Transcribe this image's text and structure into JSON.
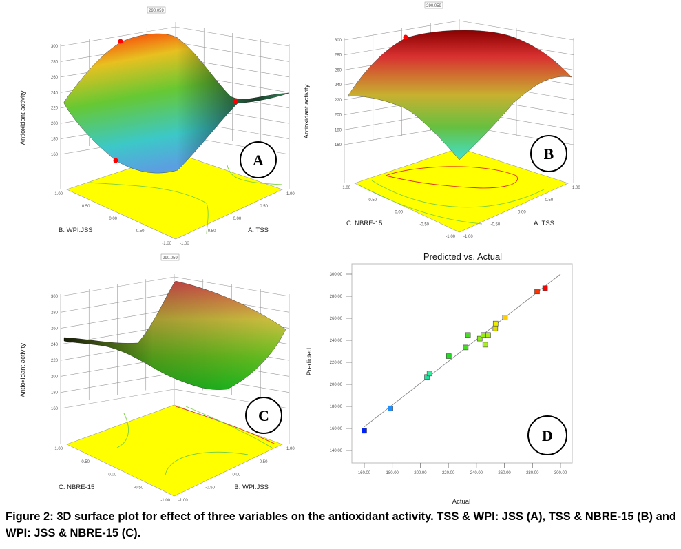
{
  "caption": "Figure 2: 3D surface plot for effect of three variables on the antioxidant activity. TSS & WPI: JSS (A), TSS & NBRE-15 (B) and WPI: JSS & NBRE-15 (C).",
  "colors": {
    "floor": "#ffff00",
    "high": "#ff0000",
    "mid": "#66cc00",
    "low": "#40e0d0",
    "design_point": "#ff0000"
  },
  "chart_data": [
    {
      "type": "surface",
      "panel_label": "A",
      "zlabel": "Antioxidant activity",
      "xlabel": "B: WPI:JSS",
      "ylabel": "A: TSS",
      "zticks": [
        "160",
        "180",
        "200",
        "220",
        "240",
        "260",
        "280",
        "300"
      ],
      "xticks": [
        "1.00",
        "0.50",
        "0.00",
        "-0.50",
        "-1.00"
      ],
      "yticks": [
        "-1.00",
        "-0.50",
        "0.00",
        "0.50",
        "1.00"
      ],
      "zlim": [
        160,
        300
      ],
      "max_annotation": "290.059"
    },
    {
      "type": "surface",
      "panel_label": "B",
      "zlabel": "Antioxidant activity",
      "xlabel": "C: NBRE-15",
      "ylabel": "A: TSS",
      "zticks": [
        "160",
        "180",
        "200",
        "220",
        "240",
        "260",
        "280",
        "300"
      ],
      "xticks": [
        "1.00",
        "0.50",
        "0.00",
        "-0.50",
        "-1.00"
      ],
      "yticks": [
        "-1.00",
        "-0.50",
        "0.00",
        "0.50",
        "1.00"
      ],
      "zlim": [
        160,
        300
      ],
      "max_annotation": "290.059"
    },
    {
      "type": "surface",
      "panel_label": "C",
      "zlabel": "Antioxidant activity",
      "xlabel": "C: NBRE-15",
      "ylabel": "B: WPI:JSS",
      "zticks": [
        "160",
        "180",
        "200",
        "220",
        "240",
        "260",
        "280",
        "300"
      ],
      "xticks": [
        "1.00",
        "0.50",
        "0.00",
        "-0.50",
        "-1.00"
      ],
      "yticks": [
        "-1.00",
        "-0.50",
        "0.00",
        "0.50",
        "1.00"
      ],
      "zlim": [
        160,
        300
      ],
      "max_annotation": "290.059"
    },
    {
      "type": "scatter",
      "panel_label": "D",
      "title": "Predicted vs. Actual",
      "xlabel": "Actual",
      "ylabel": "Predicted",
      "xlim": [
        160,
        300
      ],
      "ylim": [
        140,
        300
      ],
      "xticks": [
        "160.00",
        "180.00",
        "200.00",
        "220.00",
        "240.00",
        "260.00",
        "280.00",
        "300.00"
      ],
      "yticks": [
        "140.00",
        "160.00",
        "180.00",
        "200.00",
        "220.00",
        "240.00",
        "260.00",
        "280.00",
        "300.00"
      ],
      "reference_line": "y = x",
      "points": [
        {
          "actual": 160.0,
          "predicted": 157.9,
          "color": "#0022ff"
        },
        {
          "actual": 178.7,
          "predicted": 178.3,
          "color": "#1e90ff"
        },
        {
          "actual": 204.7,
          "predicted": 206.7,
          "color": "#20e0a0"
        },
        {
          "actual": 206.5,
          "predicted": 209.8,
          "color": "#30f0a0"
        },
        {
          "actual": 220.3,
          "predicted": 225.6,
          "color": "#22dd22"
        },
        {
          "actual": 232.4,
          "predicted": 233.5,
          "color": "#44e020"
        },
        {
          "actual": 234.0,
          "predicted": 244.8,
          "color": "#44e020"
        },
        {
          "actual": 242.4,
          "predicted": 241.5,
          "color": "#88ee11"
        },
        {
          "actual": 245.0,
          "predicted": 244.8,
          "color": "#99ee11"
        },
        {
          "actual": 248.4,
          "predicted": 244.8,
          "color": "#aaee11"
        },
        {
          "actual": 246.3,
          "predicted": 236.0,
          "color": "#aaee22"
        },
        {
          "actual": 253.5,
          "predicted": 250.8,
          "color": "#dddd00"
        },
        {
          "actual": 253.7,
          "predicted": 255.2,
          "color": "#eeee00"
        },
        {
          "actual": 260.4,
          "predicted": 260.6,
          "color": "#ffcc00"
        },
        {
          "actual": 283.3,
          "predicted": 284.2,
          "color": "#ff3300"
        },
        {
          "actual": 289.0,
          "predicted": 287.3,
          "color": "#ff0000"
        }
      ]
    }
  ]
}
